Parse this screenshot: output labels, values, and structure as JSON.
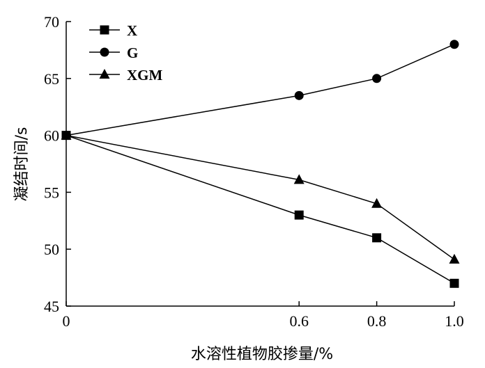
{
  "chart_data": {
    "type": "line",
    "x": [
      0,
      0.6,
      0.8,
      1.0
    ],
    "x_tick_labels": [
      "0",
      "0.6",
      "0.8",
      "1.0"
    ],
    "xlim": [
      0,
      1.0
    ],
    "ylim": [
      45,
      70
    ],
    "y_ticks": [
      45,
      50,
      55,
      60,
      65,
      70
    ],
    "y_tick_labels": [
      "45",
      "50",
      "55",
      "60",
      "65",
      "70"
    ],
    "xlabel": "水溶性植物胶掺量/%",
    "ylabel": "凝结时间/s",
    "grid": false,
    "legend_position": "top-left",
    "series": [
      {
        "name": "X",
        "marker": "square",
        "values": [
          60,
          53,
          51,
          47
        ]
      },
      {
        "name": "G",
        "marker": "circle",
        "values": [
          60,
          63.5,
          65,
          68
        ]
      },
      {
        "name": "XGM",
        "marker": "triangle",
        "values": [
          60,
          56.1,
          54,
          49.1
        ]
      }
    ]
  }
}
